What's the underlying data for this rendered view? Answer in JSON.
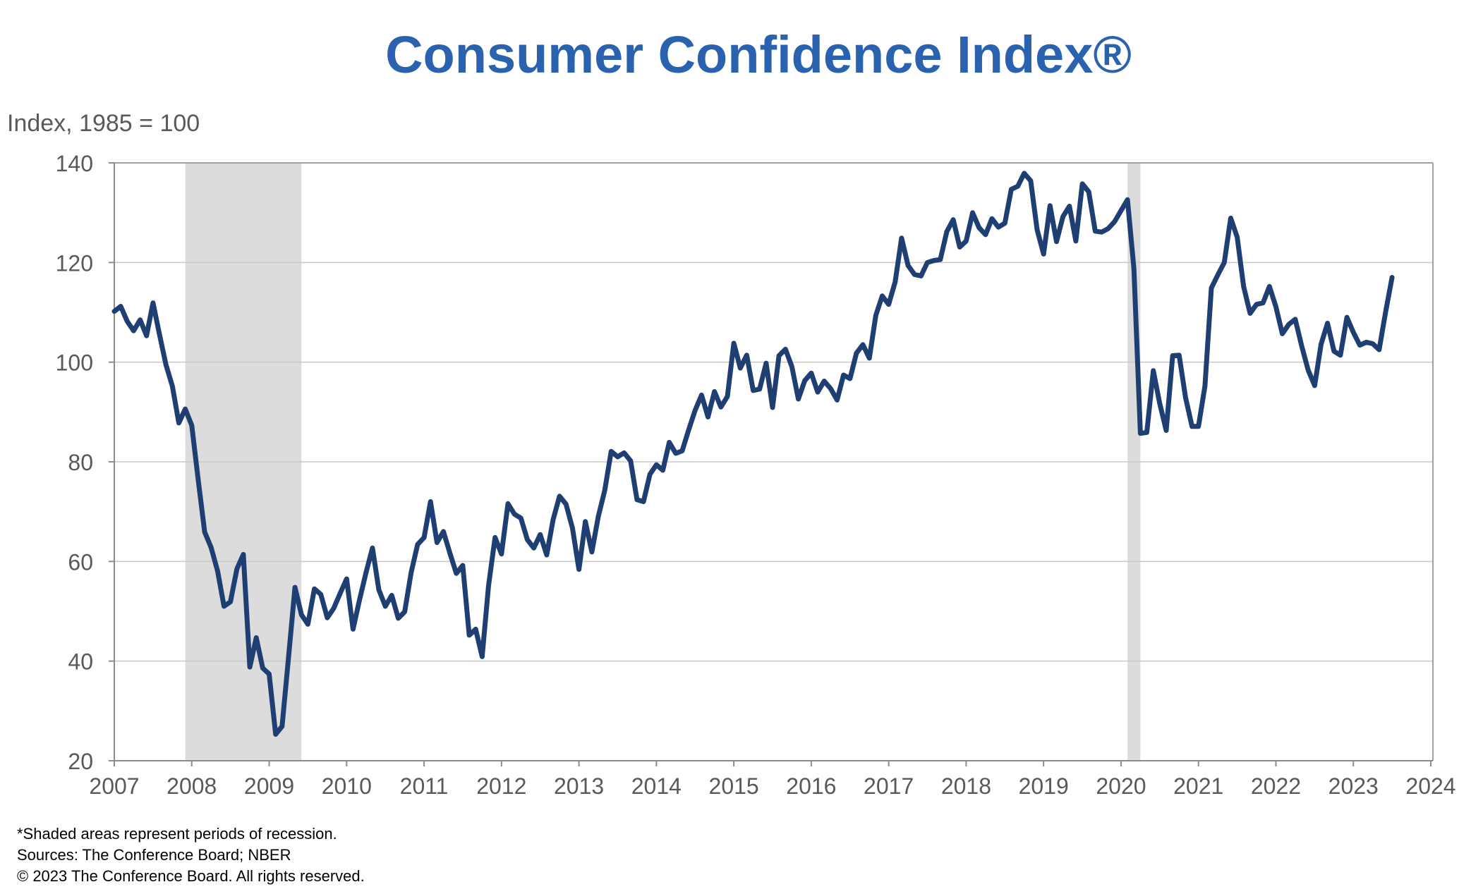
{
  "chart_data": {
    "type": "line",
    "title": "Consumer Confidence Index®",
    "ylabel": "Index, 1985 = 100",
    "xlabel": "",
    "ylim": [
      20,
      140
    ],
    "yticks": [
      20,
      40,
      60,
      80,
      100,
      120,
      140
    ],
    "xlim": [
      2007,
      2024
    ],
    "xticks": [
      "2007",
      "2008",
      "2009",
      "2010",
      "2011",
      "2012",
      "2013",
      "2014",
      "2015",
      "2016",
      "2017",
      "2018",
      "2019",
      "2020",
      "2021",
      "2022",
      "2023",
      "2024"
    ],
    "grid": "horizontal",
    "frequency": "monthly",
    "start": "2007-01",
    "line_color": "#1f3f73",
    "recession_color": "#dcdcdc",
    "recessions": [
      {
        "start": "2007-12",
        "end": "2009-06"
      },
      {
        "start": "2020-02",
        "end": "2020-04"
      }
    ],
    "series": [
      {
        "values": [
          110.2,
          111.2,
          108.2,
          106.3,
          108.5,
          105.3,
          111.9,
          105.6,
          99.5,
          95.2,
          87.8,
          90.6,
          87.3,
          76.4,
          65.9,
          62.8,
          58.1,
          51.0,
          51.9,
          58.5,
          61.4,
          38.8,
          44.7,
          38.6,
          37.4,
          25.3,
          26.9,
          40.8,
          54.8,
          49.3,
          47.4,
          54.5,
          53.4,
          48.7,
          50.6,
          53.6,
          56.5,
          46.4,
          52.3,
          57.7,
          62.7,
          54.3,
          51.0,
          53.2,
          48.6,
          49.9,
          57.8,
          63.4,
          64.8,
          72.0,
          63.8,
          66.0,
          61.7,
          57.6,
          59.2,
          45.2,
          46.4,
          40.9,
          55.2,
          64.8,
          61.5,
          71.6,
          69.5,
          68.7,
          64.4,
          62.7,
          65.4,
          61.3,
          68.4,
          73.1,
          71.5,
          66.7,
          58.4,
          68.0,
          61.9,
          69.0,
          74.3,
          82.1,
          81.0,
          81.8,
          80.2,
          72.4,
          72.0,
          77.5,
          79.4,
          78.3,
          83.9,
          81.7,
          82.2,
          86.4,
          90.3,
          93.4,
          89.0,
          94.1,
          91.0,
          93.1,
          103.8,
          98.8,
          101.4,
          94.3,
          94.6,
          99.8,
          90.9,
          101.3,
          102.6,
          99.1,
          92.6,
          96.3,
          97.8,
          94.0,
          96.2,
          94.7,
          92.4,
          97.4,
          96.7,
          101.8,
          103.5,
          100.8,
          109.4,
          113.3,
          111.6,
          116.1,
          124.9,
          119.4,
          117.6,
          117.3,
          120.0,
          120.4,
          120.6,
          126.2,
          128.6,
          123.1,
          124.3,
          130.0,
          127.0,
          125.6,
          128.8,
          127.1,
          127.9,
          134.7,
          135.3,
          137.9,
          136.4,
          126.6,
          121.7,
          131.4,
          124.2,
          129.2,
          131.3,
          124.3,
          135.8,
          134.2,
          126.3,
          126.1,
          126.8,
          128.2,
          130.4,
          132.6,
          118.8,
          85.7,
          85.9,
          98.3,
          91.7,
          86.3,
          101.3,
          101.4,
          92.9,
          87.1,
          87.1,
          95.2,
          114.9,
          117.5,
          120.0,
          128.9,
          125.1,
          115.2,
          109.8,
          111.6,
          111.9,
          115.2,
          111.1,
          105.7,
          107.6,
          108.6,
          103.2,
          98.4,
          95.3,
          103.6,
          107.8,
          102.2,
          101.4,
          109.0,
          106.0,
          103.4,
          104.0,
          103.7,
          102.5,
          110.1,
          117.0
        ]
      }
    ],
    "footnotes": [
      "*Shaded areas represent periods of recession.",
      "Sources: The Conference Board; NBER",
      "© 2023 The Conference Board. All rights reserved."
    ]
  }
}
